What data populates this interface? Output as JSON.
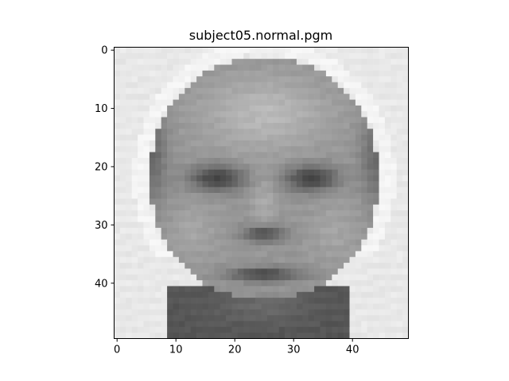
{
  "title": "subject05.normal.pgm",
  "image": {
    "rows": 50,
    "cols": 50,
    "colormap": "gray"
  },
  "axes": {
    "x_ticks": [
      0,
      10,
      20,
      30,
      40
    ],
    "y_ticks": [
      0,
      10,
      20,
      30,
      40
    ],
    "x_range": [
      -0.5,
      49.5
    ],
    "y_range": [
      -0.5,
      49.5
    ]
  }
}
